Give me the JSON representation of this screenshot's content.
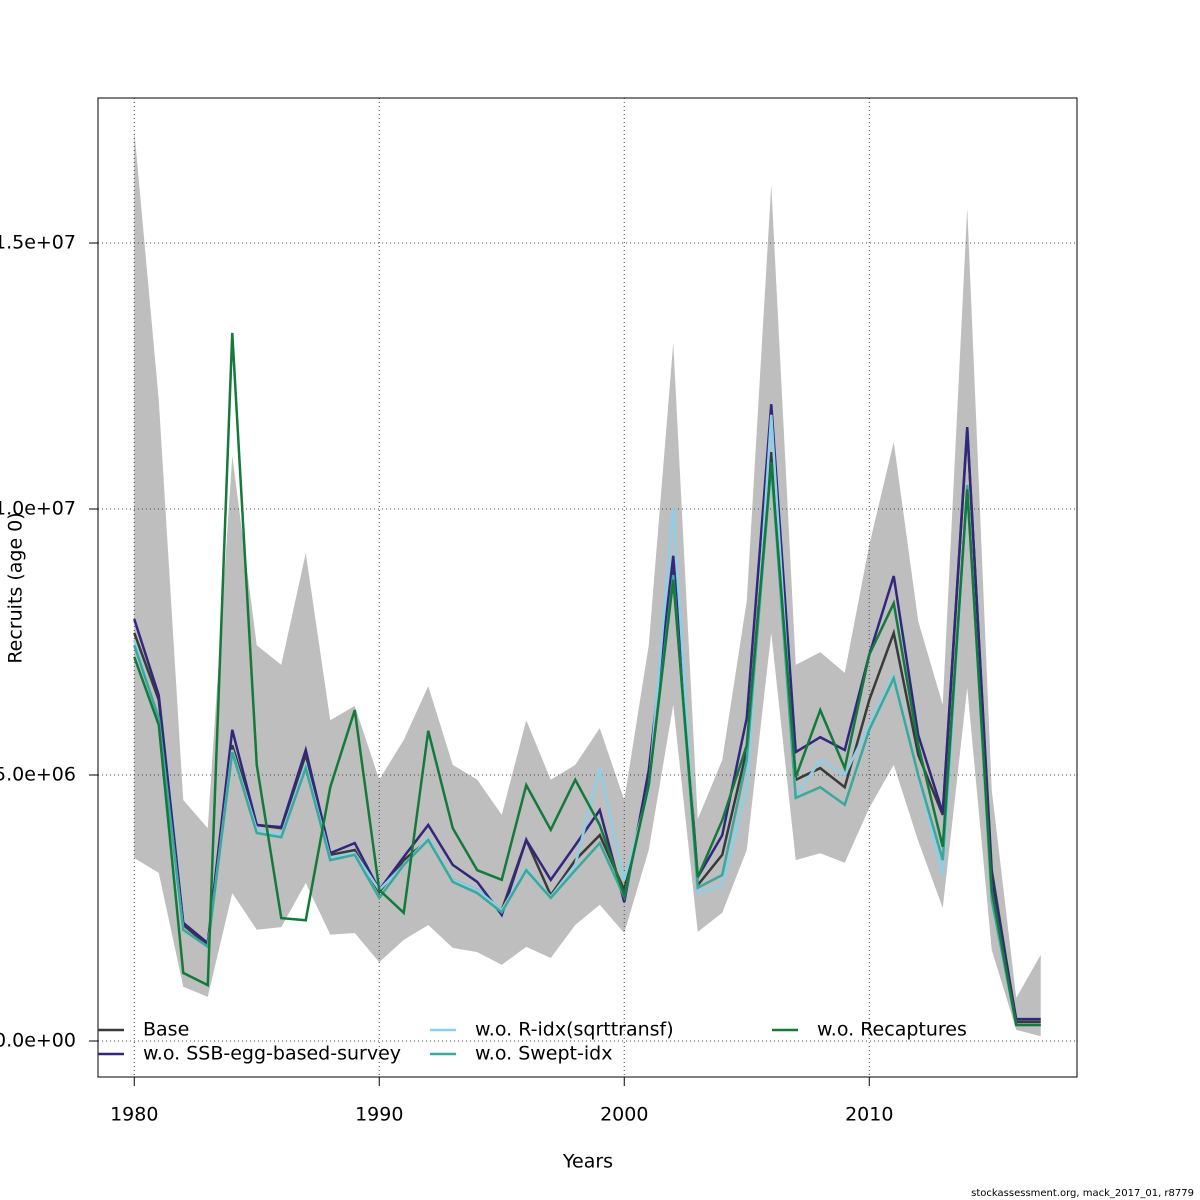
{
  "chart_data": {
    "type": "line",
    "xlabel": "Years",
    "ylabel": "Recruits (age 0)",
    "footer": "stockassessment.org, mack_2017_01, r8779",
    "x": [
      1980,
      1981,
      1982,
      1983,
      1984,
      1985,
      1986,
      1987,
      1988,
      1989,
      1990,
      1991,
      1992,
      1993,
      1994,
      1995,
      1996,
      1997,
      1998,
      1999,
      2000,
      2001,
      2002,
      2003,
      2004,
      2005,
      2006,
      2007,
      2008,
      2009,
      2010,
      2011,
      2012,
      2013,
      2014,
      2015,
      2016,
      2017
    ],
    "band": {
      "color": "#bebebe",
      "upper": [
        17120000.0,
        12050000.0,
        4530000.0,
        4000000.0,
        11000000.0,
        7440000.0,
        7070000.0,
        9170000.0,
        6030000.0,
        6300000.0,
        4910000.0,
        5660000.0,
        6670000.0,
        5190000.0,
        4910000.0,
        4250000.0,
        6030000.0,
        4910000.0,
        5190000.0,
        5880000.0,
        4530000.0,
        7440000.0,
        13120000.0,
        4170000.0,
        5280000.0,
        8270000.0,
        16090000.0,
        7070000.0,
        7310000.0,
        6920000.0,
        9320000.0,
        11260000.0,
        7890000.0,
        6320000.0,
        15660000.0,
        4720000.0,
        810000.0,
        1620000.0
      ],
      "lower": [
        3440000.0,
        3160000.0,
        1020000.0,
        830000.0,
        2780000.0,
        2090000.0,
        2140000.0,
        2970000.0,
        2000000.0,
        2030000.0,
        1480000.0,
        1900000.0,
        2180000.0,
        1750000.0,
        1670000.0,
        1430000.0,
        1770000.0,
        1560000.0,
        2180000.0,
        2560000.0,
        2030000.0,
        3590000.0,
        6320000.0,
        2050000.0,
        2410000.0,
        3590000.0,
        7670000.0,
        3400000.0,
        3530000.0,
        3350000.0,
        4380000.0,
        5190000.0,
        3760000.0,
        2500000.0,
        6640000.0,
        1710000.0,
        210000.0,
        90000.0
      ]
    },
    "series": [
      {
        "name": "Base",
        "color": "#3a3a3a",
        "values": [
          7670000.0,
          6410000.0,
          2180000.0,
          1800000.0,
          5560000.0,
          4060000.0,
          4000000.0,
          5380000.0,
          3500000.0,
          3590000.0,
          2800000.0,
          3400000.0,
          3780000.0,
          3030000.0,
          2840000.0,
          2460000.0,
          3780000.0,
          2740000.0,
          3400000.0,
          3870000.0,
          2840000.0,
          4910000.0,
          8850000.0,
          2930000.0,
          3500000.0,
          5470000.0,
          11070000.0,
          4910000.0,
          5130000.0,
          4770000.0,
          6410000.0,
          7670000.0,
          5380000.0,
          4250000.0,
          11490000.0,
          3210000.0,
          360000.0,
          360000.0
        ]
      },
      {
        "name": "w.o. SSB-egg-based-survey",
        "color": "#32277f",
        "values": [
          7930000.0,
          6500000.0,
          2220000.0,
          1840000.0,
          5850000.0,
          4060000.0,
          4020000.0,
          5470000.0,
          3530000.0,
          3720000.0,
          2840000.0,
          3460000.0,
          4060000.0,
          3310000.0,
          2990000.0,
          2370000.0,
          3780000.0,
          3030000.0,
          3680000.0,
          4340000.0,
          2610000.0,
          5090000.0,
          9120000.0,
          3080000.0,
          3870000.0,
          6070000.0,
          11970000.0,
          5430000.0,
          5710000.0,
          5470000.0,
          7260000.0,
          8740000.0,
          5750000.0,
          4290000.0,
          11540000.0,
          3080000.0,
          410000.0,
          410000.0
        ]
      },
      {
        "name": "w.o. R-idx(sqrttransf)",
        "color": "#8ecfe8",
        "values": [
          7540000.0,
          6030000.0,
          2090000.0,
          1770000.0,
          5470000.0,
          3970000.0,
          3870000.0,
          5190000.0,
          3440000.0,
          3530000.0,
          2840000.0,
          3310000.0,
          3820000.0,
          3030000.0,
          2840000.0,
          2460000.0,
          3250000.0,
          2710000.0,
          3310000.0,
          5130000.0,
          3030000.0,
          4720000.0,
          10040000.0,
          2780000.0,
          2930000.0,
          4720000.0,
          11770000.0,
          4590000.0,
          5280000.0,
          5000000.0,
          5940000.0,
          6880000.0,
          5000000.0,
          3120000.0,
          10370000.0,
          2710000.0,
          300000.0,
          300000.0
        ]
      },
      {
        "name": "w.o. Swept-idx",
        "color": "#3aa89b",
        "values": [
          7440000.0,
          6070000.0,
          2090000.0,
          1770000.0,
          5430000.0,
          3910000.0,
          3830000.0,
          5130000.0,
          3400000.0,
          3500000.0,
          2690000.0,
          3310000.0,
          3780000.0,
          2990000.0,
          2780000.0,
          2420000.0,
          3210000.0,
          2690000.0,
          3210000.0,
          3720000.0,
          2710000.0,
          4820000.0,
          8760000.0,
          2880000.0,
          3120000.0,
          5280000.0,
          10830000.0,
          4570000.0,
          4770000.0,
          4440000.0,
          5850000.0,
          6820000.0,
          5000000.0,
          3400000.0,
          10450000.0,
          2650000.0,
          300000.0,
          300000.0
        ]
      },
      {
        "name": "w.o. Recaptures",
        "color": "#137a3a",
        "values": [
          7220000.0,
          5940000.0,
          1280000.0,
          1050000.0,
          13310000.0,
          5190000.0,
          2310000.0,
          2270000.0,
          4770000.0,
          6220000.0,
          2840000.0,
          2410000.0,
          5830000.0,
          4000000.0,
          3210000.0,
          3030000.0,
          4810000.0,
          3970000.0,
          4910000.0,
          4060000.0,
          2740000.0,
          4810000.0,
          8670000.0,
          3080000.0,
          4150000.0,
          5560000.0,
          10880000.0,
          4960000.0,
          6220000.0,
          5130000.0,
          7260000.0,
          8230000.0,
          5560000.0,
          3650000.0,
          10370000.0,
          2840000.0,
          300000.0,
          300000.0
        ]
      }
    ],
    "xlim": [
      1978.52,
      2018.48
    ],
    "xticks": [
      1980,
      1990,
      2000,
      2010
    ],
    "ylim": [
      -677000,
      17726000
    ],
    "yticks": [
      {
        "value": 0,
        "label": "0.0e+00"
      },
      {
        "value": 5000000,
        "label": "5.0e+06"
      },
      {
        "value": 10000000,
        "label": "1.0e+07"
      },
      {
        "value": 15000000,
        "label": "1.5e+07"
      }
    ],
    "grid": true,
    "legend": "bottom"
  }
}
